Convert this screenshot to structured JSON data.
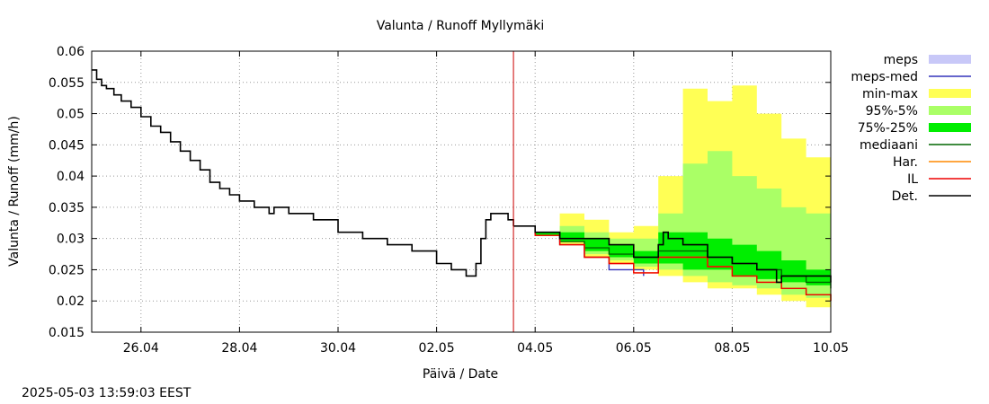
{
  "chart_data": {
    "type": "line",
    "title": "Valunta / Runoff  Myllymäki",
    "xlabel": "Päivä / Date",
    "ylabel": "Valunta / Runoff (mm/h)",
    "ylim": [
      0.015,
      0.06
    ],
    "xlim_days": [
      25.0,
      40.0
    ],
    "y_ticks": [
      0.015,
      0.02,
      0.025,
      0.03,
      0.035,
      0.04,
      0.045,
      0.05,
      0.055,
      0.06
    ],
    "y_tick_labels": [
      "0.015",
      "0.02",
      "0.025",
      "0.03",
      "0.035",
      "0.04",
      "0.045",
      "0.05",
      "0.055",
      "0.06"
    ],
    "x_ticks": [
      {
        "day": 26,
        "label": "26.04"
      },
      {
        "day": 28,
        "label": "28.04"
      },
      {
        "day": 30,
        "label": "30.04"
      },
      {
        "day": 32,
        "label": "02.05"
      },
      {
        "day": 34,
        "label": "04.05"
      },
      {
        "day": 36,
        "label": "06.05"
      },
      {
        "day": 38,
        "label": "08.05"
      },
      {
        "day": 40,
        "label": "10.05"
      }
    ],
    "grid": true,
    "forecast_start_day": 33.56,
    "legend_position": "right",
    "legend": [
      {
        "label": "meps",
        "kind": "band",
        "color": "#c8c8f8"
      },
      {
        "label": "meps-med",
        "kind": "line",
        "color": "#3333bb"
      },
      {
        "label": "min-max",
        "kind": "band",
        "color": "#ffff55"
      },
      {
        "label": "95%-5%",
        "kind": "band",
        "color": "#aaff66"
      },
      {
        "label": "75%-25%",
        "kind": "band",
        "color": "#00ee00"
      },
      {
        "label": "mediaani",
        "kind": "line",
        "color": "#006600"
      },
      {
        "label": "Har.",
        "kind": "line",
        "color": "#ff8800"
      },
      {
        "label": "IL",
        "kind": "line",
        "color": "#ee0000"
      },
      {
        "label": "Det.",
        "kind": "line",
        "color": "#000000"
      }
    ],
    "observed": {
      "name": "Det.",
      "x": [
        25.0,
        25.1,
        25.2,
        25.3,
        25.45,
        25.6,
        25.8,
        26.0,
        26.2,
        26.4,
        26.6,
        26.8,
        27.0,
        27.2,
        27.4,
        27.6,
        27.8,
        28.0,
        28.3,
        28.6,
        28.7,
        29.0,
        29.5,
        30.0,
        30.5,
        31.0,
        31.5,
        32.0,
        32.3,
        32.5,
        32.6,
        32.7,
        32.8,
        32.9,
        33.0,
        33.1,
        33.3,
        33.45,
        33.56
      ],
      "y": [
        0.057,
        0.0555,
        0.0545,
        0.054,
        0.053,
        0.052,
        0.051,
        0.0495,
        0.048,
        0.047,
        0.0455,
        0.044,
        0.0425,
        0.041,
        0.039,
        0.038,
        0.037,
        0.036,
        0.035,
        0.034,
        0.035,
        0.034,
        0.033,
        0.031,
        0.03,
        0.029,
        0.028,
        0.026,
        0.025,
        0.025,
        0.024,
        0.024,
        0.026,
        0.03,
        0.033,
        0.034,
        0.034,
        0.033,
        0.032
      ]
    },
    "forecast_x": [
      33.56,
      34.0,
      34.5,
      35.0,
      35.5,
      36.0,
      36.5,
      37.0,
      37.5,
      38.0,
      38.5,
      39.0,
      39.5,
      40.0
    ],
    "band_min_max": {
      "low": [
        0.032,
        0.0305,
        0.029,
        0.027,
        0.026,
        0.025,
        0.024,
        0.023,
        0.022,
        0.022,
        0.021,
        0.02,
        0.019,
        0.019
      ],
      "high": [
        0.032,
        0.031,
        0.034,
        0.033,
        0.031,
        0.032,
        0.04,
        0.054,
        0.052,
        0.0545,
        0.05,
        0.046,
        0.043,
        0.04
      ]
    },
    "band_95_5": {
      "low": [
        0.032,
        0.0305,
        0.0295,
        0.0275,
        0.0265,
        0.0255,
        0.025,
        0.024,
        0.023,
        0.0225,
        0.022,
        0.021,
        0.0205,
        0.02
      ],
      "high": [
        0.032,
        0.031,
        0.032,
        0.031,
        0.03,
        0.03,
        0.034,
        0.042,
        0.044,
        0.04,
        0.038,
        0.035,
        0.034,
        0.032
      ]
    },
    "band_75_25": {
      "low": [
        0.032,
        0.0305,
        0.0295,
        0.028,
        0.027,
        0.026,
        0.026,
        0.025,
        0.025,
        0.024,
        0.0235,
        0.023,
        0.0225,
        0.022
      ],
      "high": [
        0.032,
        0.031,
        0.031,
        0.03,
        0.029,
        0.028,
        0.031,
        0.031,
        0.03,
        0.029,
        0.028,
        0.0265,
        0.025,
        0.025
      ]
    },
    "series": [
      {
        "name": "meps-med",
        "color": "#3333bb",
        "x": [
          33.56,
          34.0,
          34.5,
          35.0,
          35.5,
          36.0,
          36.2
        ],
        "y": [
          0.032,
          0.031,
          0.029,
          0.027,
          0.025,
          0.025,
          0.024
        ]
      },
      {
        "name": "mediaani",
        "color": "#006600",
        "x": [
          33.56,
          34.0,
          34.5,
          35.0,
          35.5,
          36.0,
          36.5,
          37.0,
          37.5,
          38.0,
          38.5,
          39.0,
          39.5,
          40.0
        ],
        "y": [
          0.032,
          0.031,
          0.0295,
          0.0285,
          0.0275,
          0.027,
          0.028,
          0.028,
          0.027,
          0.026,
          0.025,
          0.024,
          0.023,
          0.022
        ]
      },
      {
        "name": "Har.",
        "color": "#ff8800",
        "x": [
          33.56,
          34.0,
          34.5,
          35.0,
          35.5,
          36.0,
          36.5,
          37.0,
          37.5,
          38.0,
          38.5,
          39.0,
          39.5,
          40.0
        ],
        "y": [
          0.032,
          0.0305,
          0.029,
          0.027,
          0.026,
          0.0245,
          0.027,
          0.027,
          0.0255,
          0.024,
          0.023,
          0.022,
          0.021,
          0.02
        ]
      },
      {
        "name": "IL",
        "color": "#ee0000",
        "x": [
          33.56,
          34.0,
          34.5,
          35.0,
          35.5,
          36.0,
          36.5,
          37.0,
          37.5,
          38.0,
          38.5,
          39.0,
          39.5,
          40.0
        ],
        "y": [
          0.032,
          0.0305,
          0.029,
          0.027,
          0.026,
          0.0245,
          0.027,
          0.027,
          0.0255,
          0.024,
          0.023,
          0.022,
          0.021,
          0.02
        ]
      },
      {
        "name": "Det.",
        "color": "#000000",
        "x": [
          33.56,
          34.0,
          34.5,
          35.0,
          35.5,
          36.0,
          36.3,
          36.5,
          36.6,
          36.7,
          36.8,
          37.0,
          37.5,
          38.0,
          38.5,
          38.8,
          38.9,
          39.0,
          39.5,
          40.0
        ],
        "y": [
          0.032,
          0.031,
          0.03,
          0.03,
          0.029,
          0.027,
          0.027,
          0.029,
          0.031,
          0.03,
          0.03,
          0.029,
          0.027,
          0.026,
          0.025,
          0.025,
          0.023,
          0.024,
          0.024,
          0.023
        ]
      }
    ]
  },
  "timestamp": "2025-05-03 13:59:03 EEST"
}
